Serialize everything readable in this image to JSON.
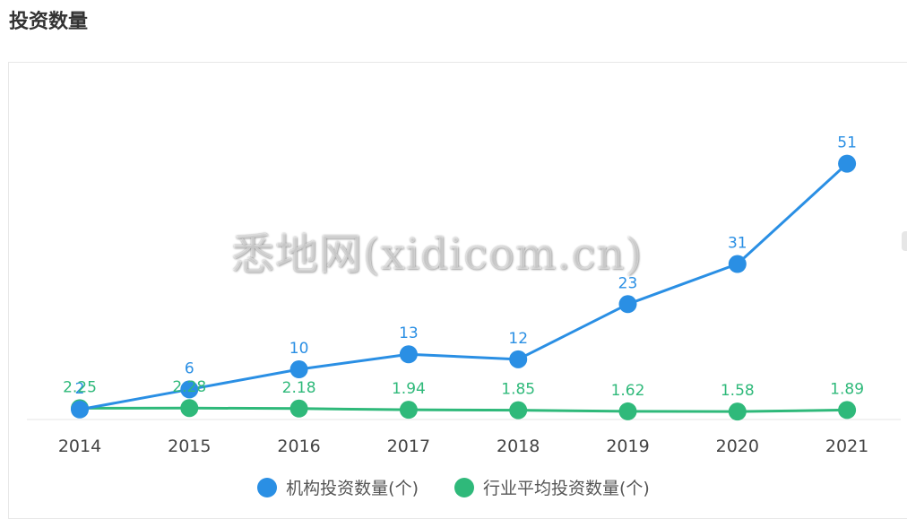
{
  "page": {
    "title": "投资数量"
  },
  "watermark": "悉地网(xidicom.cn)",
  "colors": {
    "series_1": "#2a8fe4",
    "series_2": "#2fb97a",
    "axis": "#e6e6e6",
    "tick_text": "#444444"
  },
  "chart_data": {
    "type": "line",
    "title": "",
    "xlabel": "",
    "ylabel": "",
    "categories": [
      "2014",
      "2015",
      "2016",
      "2017",
      "2018",
      "2019",
      "2020",
      "2021"
    ],
    "series": [
      {
        "name": "机构投资数量(个)",
        "values": [
          2,
          6,
          10,
          13,
          12,
          23,
          31,
          51
        ],
        "labels": [
          "2",
          "6",
          "10",
          "13",
          "12",
          "23",
          "31",
          "51"
        ]
      },
      {
        "name": "行业平均投资数量(个)",
        "values": [
          2.25,
          2.28,
          2.18,
          1.94,
          1.85,
          1.62,
          1.58,
          1.89
        ],
        "labels": [
          "2.25",
          "2.28",
          "2.18",
          "1.94",
          "1.85",
          "1.62",
          "1.58",
          "1.89"
        ]
      }
    ],
    "ylim": [
      0,
      57
    ],
    "grid": false,
    "legend": "bottom-center"
  }
}
